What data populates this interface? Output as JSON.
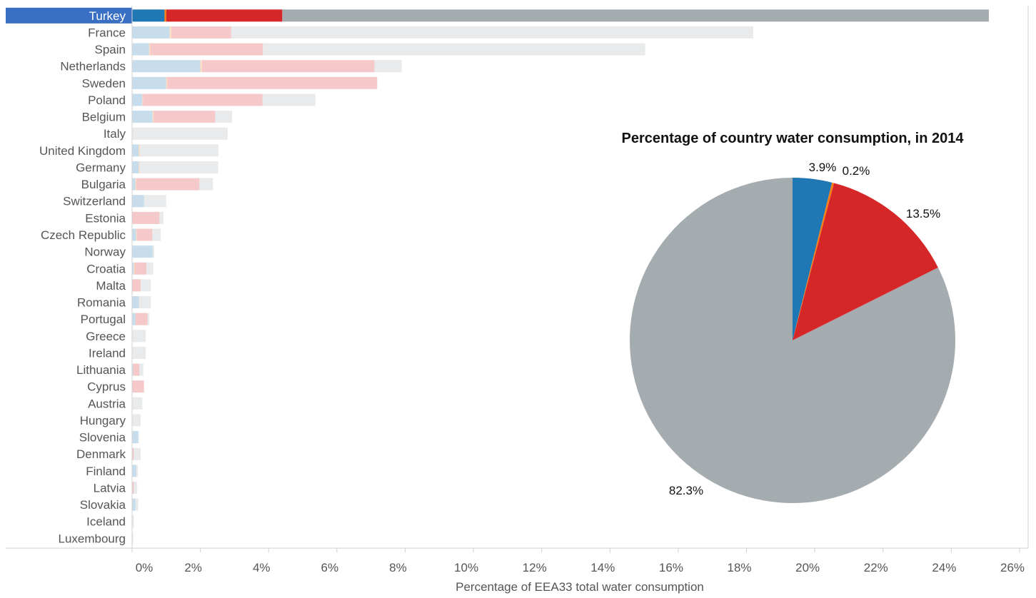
{
  "chart_data": [
    {
      "type": "bar",
      "stacked": true,
      "orientation": "horizontal",
      "xlabel": "Percentage of EEA33 total water consumption",
      "xlim": [
        0,
        26
      ],
      "xticks": [
        "0%",
        "2%",
        "4%",
        "6%",
        "8%",
        "10%",
        "12%",
        "14%",
        "16%",
        "18%",
        "20%",
        "22%",
        "24%",
        "26%"
      ],
      "highlighted_category": "Turkey",
      "categories": [
        "Turkey",
        "France",
        "Spain",
        "Netherlands",
        "Sweden",
        "Poland",
        "Belgium",
        "Italy",
        "United Kingdom",
        "Germany",
        "Bulgaria",
        "Switzerland",
        "Estonia",
        "Czech Republic",
        "Norway",
        "Croatia",
        "Malta",
        "Romania",
        "Portugal",
        "Greece",
        "Ireland",
        "Lithuania",
        "Cyprus",
        "Austria",
        "Hungary",
        "Slovenia",
        "Denmark",
        "Finland",
        "Latvia",
        "Slovakia",
        "Iceland",
        "Luxembourg"
      ],
      "series": [
        {
          "color": "#1f77b4",
          "values": [
            0.95,
            1.1,
            0.5,
            2.0,
            1.0,
            0.3,
            0.6,
            0.0,
            0.2,
            0.2,
            0.1,
            0.35,
            0.0,
            0.12,
            0.6,
            0.05,
            0.0,
            0.2,
            0.1,
            0.0,
            0.0,
            0.03,
            0.0,
            0.0,
            0.0,
            0.18,
            0.0,
            0.12,
            0.0,
            0.1,
            0.0,
            0.0
          ]
        },
        {
          "color": "#ff7f0e",
          "values": [
            0.05,
            0.05,
            0.03,
            0.05,
            0.03,
            0.02,
            0.03,
            0.0,
            0.03,
            0.02,
            0.02,
            0.0,
            0.0,
            0.02,
            0.0,
            0.02,
            0.0,
            0.0,
            0.0,
            0.0,
            0.0,
            0.0,
            0.0,
            0.0,
            0.0,
            0.0,
            0.0,
            0.0,
            0.0,
            0.0,
            0.0,
            0.0
          ]
        },
        {
          "color": "#d62728",
          "values": [
            3.4,
            1.75,
            3.3,
            5.05,
            6.15,
            3.5,
            1.8,
            0.0,
            0.0,
            0.0,
            1.85,
            0.0,
            0.8,
            0.45,
            0.0,
            0.35,
            0.25,
            0.0,
            0.35,
            0.0,
            0.0,
            0.18,
            0.35,
            0.0,
            0.0,
            0.0,
            0.05,
            0.0,
            0.05,
            0.0,
            0.0,
            0.0
          ]
        },
        {
          "color": "#a5acaf",
          "values": [
            20.7,
            15.3,
            11.2,
            0.8,
            0.0,
            1.55,
            0.5,
            2.8,
            2.3,
            2.3,
            0.4,
            0.65,
            0.12,
            0.25,
            0.05,
            0.2,
            0.3,
            0.35,
            0.05,
            0.4,
            0.4,
            0.12,
            0.0,
            0.3,
            0.25,
            0.02,
            0.2,
            0.05,
            0.1,
            0.08,
            0.05,
            0.03
          ]
        }
      ]
    },
    {
      "type": "pie",
      "title": "Percentage of country water consumption, in 2014",
      "slices": [
        {
          "value": 3.9,
          "label": "3.9%",
          "color": "#1f77b4"
        },
        {
          "value": 0.2,
          "label": "0.2%",
          "color": "#ff7f0e"
        },
        {
          "value": 13.5,
          "label": "13.5%",
          "color": "#d62728"
        },
        {
          "value": 82.3,
          "label": "82.3%",
          "color": "#a5acaf"
        }
      ]
    }
  ],
  "colors": {
    "highlight_band": "#3a70c4",
    "faded_opacity": 0.25,
    "axis": "#d0d0d0",
    "text": "#555555"
  }
}
